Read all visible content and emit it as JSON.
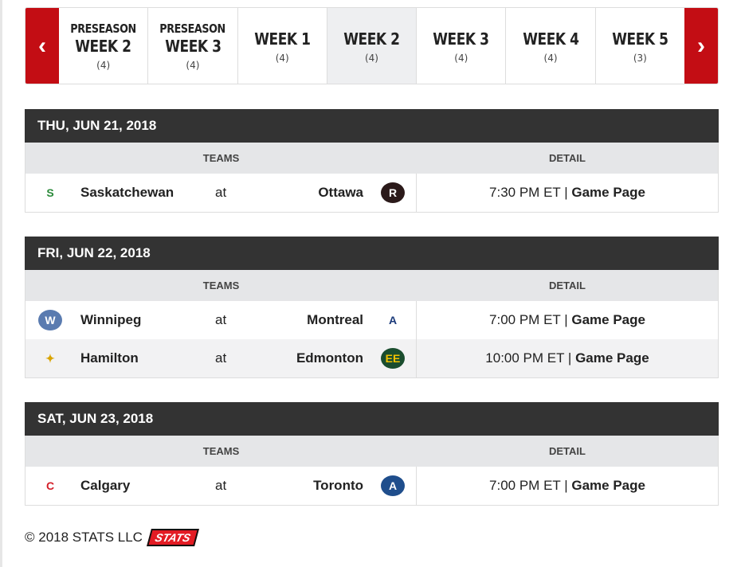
{
  "nav": {
    "prev_icon": "chevron-left-icon",
    "next_icon": "chevron-right-icon",
    "prev": "‹",
    "next": "›",
    "tabs": [
      {
        "pre": "PRESEASON",
        "label": "WEEK 2",
        "count": "(4)"
      },
      {
        "pre": "PRESEASON",
        "label": "WEEK 3",
        "count": "(4)"
      },
      {
        "pre": "",
        "label": "WEEK 1",
        "count": "(4)"
      },
      {
        "pre": "",
        "label": "WEEK 2",
        "count": "(4)",
        "active": true
      },
      {
        "pre": "",
        "label": "WEEK 3",
        "count": "(4)"
      },
      {
        "pre": "",
        "label": "WEEK 4",
        "count": "(4)"
      },
      {
        "pre": "",
        "label": "WEEK 5",
        "count": "(3)"
      }
    ]
  },
  "columns": {
    "teams": "TEAMS",
    "detail": "DETAIL"
  },
  "days": [
    {
      "date": "THU, JUN 21, 2018",
      "games": [
        {
          "away": "Saskatchewan",
          "at": "at",
          "home": "Ottawa",
          "time": "7:30 PM ET",
          "sep": " | ",
          "link": "Game Page"
        }
      ]
    },
    {
      "date": "FRI, JUN 22, 2018",
      "games": [
        {
          "away": "Winnipeg",
          "at": "at",
          "home": "Montreal",
          "time": "7:00 PM ET",
          "sep": " | ",
          "link": "Game Page"
        },
        {
          "away": "Hamilton",
          "at": "at",
          "home": "Edmonton",
          "time": "10:00 PM ET",
          "sep": " | ",
          "link": "Game Page"
        }
      ]
    },
    {
      "date": "SAT, JUN 23, 2018",
      "games": [
        {
          "away": "Calgary",
          "at": "at",
          "home": "Toronto",
          "time": "7:00 PM ET",
          "sep": " | ",
          "link": "Game Page"
        }
      ]
    }
  ],
  "logos": {
    "Saskatchewan": {
      "t": "S",
      "c": "#2a8a3a",
      "bg": "transparent"
    },
    "Ottawa": {
      "t": "R",
      "c": "#fff",
      "bg": "#2b1a1a"
    },
    "Winnipeg": {
      "t": "W",
      "c": "#fff",
      "bg": "#5a7bb0"
    },
    "Montreal": {
      "t": "A",
      "c": "#1b3a7a",
      "bg": "transparent"
    },
    "Hamilton": {
      "t": "✦",
      "c": "#d9a400",
      "bg": "transparent"
    },
    "Edmonton": {
      "t": "EE",
      "c": "#f2c200",
      "bg": "#1a4d2e"
    },
    "Calgary": {
      "t": "C",
      "c": "#d4202a",
      "bg": "transparent"
    },
    "Toronto": {
      "t": "A",
      "c": "#fff",
      "bg": "#1f4e8c"
    }
  },
  "footer": {
    "copyright": "© 2018 STATS LLC",
    "logo_text": "STATS"
  }
}
